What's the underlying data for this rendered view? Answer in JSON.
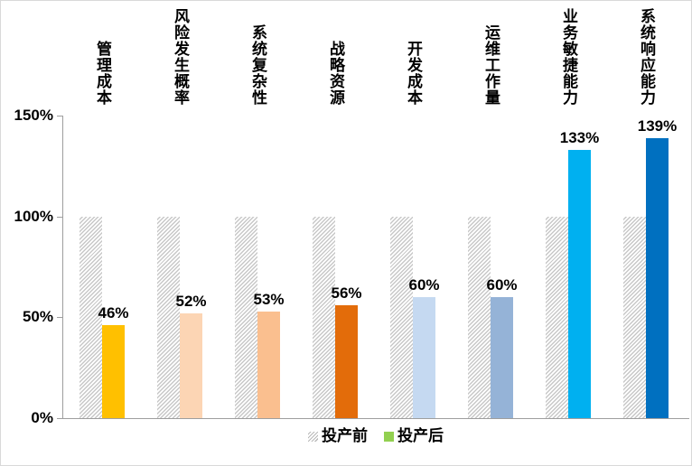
{
  "chart_data": {
    "type": "bar",
    "title": "",
    "categories": [
      "管理成本",
      "风险发生概率",
      "系统复杂性",
      "战略资源",
      "开发成本",
      "运维工作量",
      "业务敏捷能力",
      "系统响应能力"
    ],
    "series": [
      {
        "name": "投产前",
        "values": [
          100,
          100,
          100,
          100,
          100,
          100,
          100,
          100
        ],
        "style": "hatched-gray"
      },
      {
        "name": "投产后",
        "values": [
          46,
          52,
          53,
          56,
          60,
          60,
          133,
          139
        ],
        "colors": [
          "#FFC000",
          "#FCD5B4",
          "#FABF8F",
          "#E36C0A",
          "#C5D9F1",
          "#95B3D7",
          "#00B0F0",
          "#0070C0"
        ]
      }
    ],
    "value_labels": [
      "46%",
      "52%",
      "53%",
      "56%",
      "60%",
      "60%",
      "133%",
      "139%"
    ],
    "ylim": [
      0,
      150
    ],
    "yticks": [
      {
        "value": 0,
        "label": "0%"
      },
      {
        "value": 50,
        "label": "50%"
      },
      {
        "value": 100,
        "label": "100%"
      },
      {
        "value": 150,
        "label": "150%"
      }
    ],
    "grid": false,
    "legend_position": "bottom",
    "legend": {
      "entries": [
        {
          "label": "投产前",
          "swatch": "hatched-gray"
        },
        {
          "label": "投产后",
          "swatch": "solid",
          "swatch_color": "#92D050"
        }
      ]
    }
  },
  "colors": {
    "axis": "#9e9e9e",
    "hatch_stripe": "#c8c8c8",
    "text": "#000000",
    "background": "#ffffff",
    "canvas_border": "#d9d9d9",
    "legend_after_swatch": "#92D050"
  }
}
